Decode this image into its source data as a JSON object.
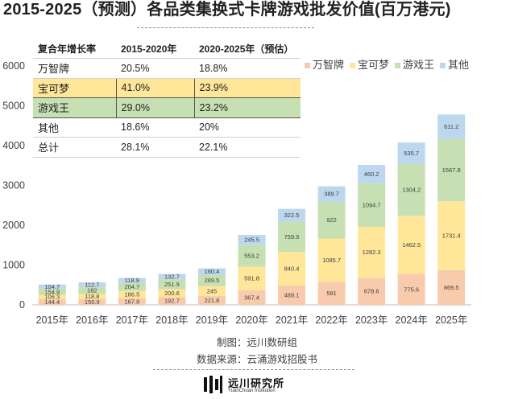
{
  "chart_data": {
    "type": "bar",
    "stacked": true,
    "title": "2015-2025（预测）各品类集换式卡牌游戏批发价值(百万港元)",
    "categories": [
      "2015年",
      "2016年",
      "2017年",
      "2018年",
      "2019年",
      "2020年",
      "2021年",
      "2022年",
      "2023年",
      "2024年",
      "2025年"
    ],
    "ylim": [
      0,
      6000
    ],
    "yticks": [
      "0",
      "1000",
      "2000",
      "3000",
      "4000",
      "5000",
      "6000"
    ],
    "grid": false,
    "legend_position": "top-right",
    "series": [
      {
        "name": "万智牌",
        "color": "#f8cbad",
        "values": [
          144.4,
          150.9,
          167.8,
          192.7,
          221.8,
          367.4,
          489.1,
          581,
          678.6,
          775.6,
          869.5
        ]
      },
      {
        "name": "宝可梦",
        "color": "#ffe699",
        "values": [
          106.3,
          118.8,
          186.5,
          200.6,
          245,
          591.8,
          840.4,
          1085.7,
          1282.3,
          1462.5,
          1731.4
        ]
      },
      {
        "name": "游戏王",
        "color": "#c6e0b4",
        "values": [
          154.9,
          182,
          204.7,
          251.9,
          289.5,
          553.2,
          759.5,
          922,
          1094.7,
          1304.2,
          1567.8
        ]
      },
      {
        "name": "其他",
        "color": "#bdd7ee",
        "values": [
          104.7,
          112.7,
          118.9,
          132.7,
          160.4,
          245.5,
          322.5,
          389.7,
          460.2,
          535.7,
          611.2
        ]
      }
    ],
    "value_labels": [
      [
        "144.4",
        "150.9",
        "167.8",
        "192.7",
        "221.8",
        "367.4",
        "489.1",
        "581",
        "678.6",
        "775.6",
        "869.5"
      ],
      [
        "106.3",
        "118.8",
        "186.5",
        "200.6",
        "245",
        "591.8",
        "840.4",
        "1085.7",
        "1282.3",
        "1462.5",
        "1731.4"
      ],
      [
        "154.9",
        "182",
        "204.7",
        "251.9",
        "289.5",
        "553.2",
        "759.5",
        "922",
        "1094.7",
        "1304.2",
        "1567.8"
      ],
      [
        "104.7",
        "112.7",
        "118.9",
        "132.7",
        "160.4",
        "245.5",
        "322.5",
        "389.7",
        "460.2",
        "535.7",
        "611.2"
      ]
    ]
  },
  "table": {
    "header": [
      "复合年增长率",
      "2015-2020年",
      "2020-2025年（预估）"
    ],
    "rows": [
      [
        "万智牌",
        "20.5%",
        "18.8%"
      ],
      [
        "宝可梦",
        "41.0%",
        "23.9%"
      ],
      [
        "游戏王",
        "29.0%",
        "23.2%"
      ],
      [
        "其他",
        "18.6%",
        "20%"
      ],
      [
        "总计",
        "28.1%",
        "22.1%"
      ]
    ]
  },
  "footer": {
    "credit": "制图：远川数研组",
    "source": "数据来源：云涌游戏招股书"
  },
  "logo": {
    "name_cn": "远川研究所",
    "name_en": "YuanChuan Institution"
  }
}
